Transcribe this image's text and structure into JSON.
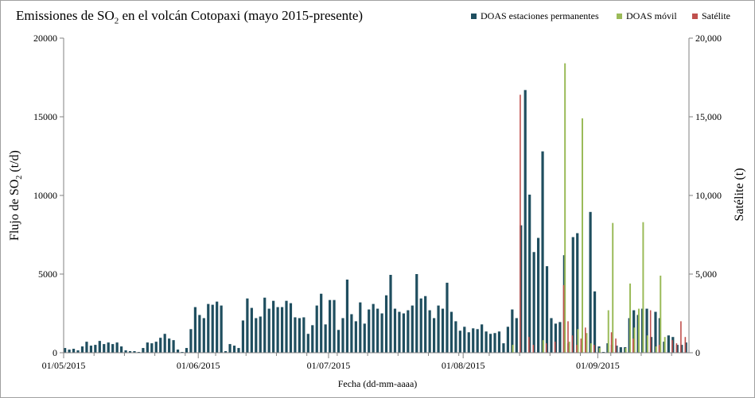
{
  "chart_data": {
    "type": "bar",
    "title": {
      "pre": "Emissiones de SO",
      "sub": "2",
      "post": " en el volcán Cotopaxi (mayo 2015-presente)"
    },
    "xlabel": "Fecha (dd-mm-aaaa)",
    "ylabel": {
      "pre": "Flujo de SO",
      "sub": "2",
      "post": " (t/d)"
    },
    "y2label": "Satélite (t)",
    "ylim": [
      0,
      20000
    ],
    "y2lim": [
      0,
      20000
    ],
    "yticks": [
      "0",
      "5000",
      "10000",
      "15000",
      "20000"
    ],
    "y2ticks": [
      "0",
      "5,000",
      "10,000",
      "15,000",
      "20,000"
    ],
    "xticks": [
      "01/05/2015",
      "01/06/2015",
      "01/07/2015",
      "01/08/2015",
      "01/09/2015"
    ],
    "x_start": "01/05/2015",
    "grid": false,
    "legend_position": "top-right",
    "series": [
      {
        "name": "DOAS estaciones permanentes",
        "color": "#1f4e5f",
        "axis": "left",
        "values": [
          {
            "date": "01/05/2015",
            "value": 300
          },
          {
            "date": "02/05/2015",
            "value": 200
          },
          {
            "date": "03/05/2015",
            "value": 250
          },
          {
            "date": "04/05/2015",
            "value": 150
          },
          {
            "date": "05/05/2015",
            "value": 400
          },
          {
            "date": "06/05/2015",
            "value": 700
          },
          {
            "date": "07/05/2015",
            "value": 450
          },
          {
            "date": "08/05/2015",
            "value": 500
          },
          {
            "date": "09/05/2015",
            "value": 750
          },
          {
            "date": "10/05/2015",
            "value": 550
          },
          {
            "date": "11/05/2015",
            "value": 650
          },
          {
            "date": "12/05/2015",
            "value": 550
          },
          {
            "date": "13/05/2015",
            "value": 650
          },
          {
            "date": "14/05/2015",
            "value": 400
          },
          {
            "date": "15/05/2015",
            "value": 150
          },
          {
            "date": "16/05/2015",
            "value": 100
          },
          {
            "date": "17/05/2015",
            "value": 100
          },
          {
            "date": "18/05/2015",
            "value": 50
          },
          {
            "date": "19/05/2015",
            "value": 300
          },
          {
            "date": "20/05/2015",
            "value": 650
          },
          {
            "date": "21/05/2015",
            "value": 600
          },
          {
            "date": "22/05/2015",
            "value": 700
          },
          {
            "date": "23/05/2015",
            "value": 950
          },
          {
            "date": "24/05/2015",
            "value": 1200
          },
          {
            "date": "25/05/2015",
            "value": 900
          },
          {
            "date": "26/05/2015",
            "value": 800
          },
          {
            "date": "27/05/2015",
            "value": 200
          },
          {
            "date": "28/05/2015",
            "value": 50
          },
          {
            "date": "29/05/2015",
            "value": 300
          },
          {
            "date": "30/05/2015",
            "value": 1500
          },
          {
            "date": "31/05/2015",
            "value": 2900
          },
          {
            "date": "01/06/2015",
            "value": 2400
          },
          {
            "date": "02/06/2015",
            "value": 2200
          },
          {
            "date": "03/06/2015",
            "value": 3100
          },
          {
            "date": "04/06/2015",
            "value": 3050
          },
          {
            "date": "05/06/2015",
            "value": 3250
          },
          {
            "date": "06/06/2015",
            "value": 3000
          },
          {
            "date": "07/06/2015",
            "value": 100
          },
          {
            "date": "08/06/2015",
            "value": 550
          },
          {
            "date": "09/06/2015",
            "value": 450
          },
          {
            "date": "10/06/2015",
            "value": 300
          },
          {
            "date": "11/06/2015",
            "value": 2050
          },
          {
            "date": "12/06/2015",
            "value": 3450
          },
          {
            "date": "13/06/2015",
            "value": 2850
          },
          {
            "date": "14/06/2015",
            "value": 2200
          },
          {
            "date": "15/06/2015",
            "value": 2300
          },
          {
            "date": "16/06/2015",
            "value": 3500
          },
          {
            "date": "17/06/2015",
            "value": 2800
          },
          {
            "date": "18/06/2015",
            "value": 3300
          },
          {
            "date": "19/06/2015",
            "value": 2900
          },
          {
            "date": "20/06/2015",
            "value": 2900
          },
          {
            "date": "21/06/2015",
            "value": 3300
          },
          {
            "date": "22/06/2015",
            "value": 3150
          },
          {
            "date": "23/06/2015",
            "value": 2250
          },
          {
            "date": "24/06/2015",
            "value": 2200
          },
          {
            "date": "25/06/2015",
            "value": 2250
          },
          {
            "date": "26/06/2015",
            "value": 1200
          },
          {
            "date": "27/06/2015",
            "value": 1750
          },
          {
            "date": "28/06/2015",
            "value": 3000
          },
          {
            "date": "29/06/2015",
            "value": 3750
          },
          {
            "date": "30/06/2015",
            "value": 1800
          },
          {
            "date": "01/07/2015",
            "value": 3350
          },
          {
            "date": "02/07/2015",
            "value": 3350
          },
          {
            "date": "03/07/2015",
            "value": 1450
          },
          {
            "date": "04/07/2015",
            "value": 2200
          },
          {
            "date": "05/07/2015",
            "value": 4650
          },
          {
            "date": "06/07/2015",
            "value": 2450
          },
          {
            "date": "07/07/2015",
            "value": 2000
          },
          {
            "date": "08/07/2015",
            "value": 3200
          },
          {
            "date": "09/07/2015",
            "value": 1850
          },
          {
            "date": "10/07/2015",
            "value": 2750
          },
          {
            "date": "11/07/2015",
            "value": 3100
          },
          {
            "date": "12/07/2015",
            "value": 2800
          },
          {
            "date": "13/07/2015",
            "value": 2500
          },
          {
            "date": "14/07/2015",
            "value": 3650
          },
          {
            "date": "15/07/2015",
            "value": 4950
          },
          {
            "date": "16/07/2015",
            "value": 2800
          },
          {
            "date": "17/07/2015",
            "value": 2600
          },
          {
            "date": "18/07/2015",
            "value": 2500
          },
          {
            "date": "19/07/2015",
            "value": 2700
          },
          {
            "date": "20/07/2015",
            "value": 3000
          },
          {
            "date": "21/07/2015",
            "value": 5000
          },
          {
            "date": "22/07/2015",
            "value": 3450
          },
          {
            "date": "23/07/2015",
            "value": 3600
          },
          {
            "date": "24/07/2015",
            "value": 2700
          },
          {
            "date": "25/07/2015",
            "value": 2200
          },
          {
            "date": "26/07/2015",
            "value": 3000
          },
          {
            "date": "27/07/2015",
            "value": 2800
          },
          {
            "date": "28/07/2015",
            "value": 4450
          },
          {
            "date": "29/07/2015",
            "value": 2600
          },
          {
            "date": "30/07/2015",
            "value": 2000
          },
          {
            "date": "31/07/2015",
            "value": 1400
          },
          {
            "date": "01/08/2015",
            "value": 1650
          },
          {
            "date": "02/08/2015",
            "value": 1300
          },
          {
            "date": "03/08/2015",
            "value": 1550
          },
          {
            "date": "04/08/2015",
            "value": 1500
          },
          {
            "date": "05/08/2015",
            "value": 1800
          },
          {
            "date": "06/08/2015",
            "value": 1350
          },
          {
            "date": "07/08/2015",
            "value": 1200
          },
          {
            "date": "08/08/2015",
            "value": 1250
          },
          {
            "date": "09/08/2015",
            "value": 1350
          },
          {
            "date": "10/08/2015",
            "value": 600
          },
          {
            "date": "11/08/2015",
            "value": 1650
          },
          {
            "date": "12/08/2015",
            "value": 2750
          },
          {
            "date": "13/08/2015",
            "value": 2200
          },
          {
            "date": "14/08/2015",
            "value": 8100
          },
          {
            "date": "15/08/2015",
            "value": 16700
          },
          {
            "date": "16/08/2015",
            "value": 10050
          },
          {
            "date": "17/08/2015",
            "value": 6400
          },
          {
            "date": "18/08/2015",
            "value": 7300
          },
          {
            "date": "19/08/2015",
            "value": 12800
          },
          {
            "date": "20/08/2015",
            "value": 5500
          },
          {
            "date": "21/08/2015",
            "value": 2200
          },
          {
            "date": "22/08/2015",
            "value": 1850
          },
          {
            "date": "23/08/2015",
            "value": 1950
          },
          {
            "date": "24/08/2015",
            "value": 6200
          },
          {
            "date": "25/08/2015",
            "value": 600
          },
          {
            "date": "26/08/2015",
            "value": 7350
          },
          {
            "date": "27/08/2015",
            "value": 7600
          },
          {
            "date": "28/08/2015",
            "value": 500
          },
          {
            "date": "29/08/2015",
            "value": 750
          },
          {
            "date": "30/08/2015",
            "value": 8950
          },
          {
            "date": "31/08/2015",
            "value": 3900
          },
          {
            "date": "01/09/2015",
            "value": 400
          },
          {
            "date": "02/09/2015",
            "value": 50
          },
          {
            "date": "03/09/2015",
            "value": 600
          },
          {
            "date": "04/09/2015",
            "value": 500
          },
          {
            "date": "05/09/2015",
            "value": 450
          },
          {
            "date": "06/09/2015",
            "value": 350
          },
          {
            "date": "07/09/2015",
            "value": 350
          },
          {
            "date": "08/09/2015",
            "value": 2200
          },
          {
            "date": "09/09/2015",
            "value": 2700
          },
          {
            "date": "10/09/2015",
            "value": 2400
          },
          {
            "date": "11/09/2015",
            "value": 2800
          },
          {
            "date": "12/09/2015",
            "value": 2800
          },
          {
            "date": "13/09/2015",
            "value": 1000
          },
          {
            "date": "14/09/2015",
            "value": 2600
          },
          {
            "date": "15/09/2015",
            "value": 2200
          },
          {
            "date": "16/09/2015",
            "value": 700
          },
          {
            "date": "17/09/2015",
            "value": 1100
          },
          {
            "date": "18/09/2015",
            "value": 1000
          },
          {
            "date": "19/09/2015",
            "value": 500
          },
          {
            "date": "20/09/2015",
            "value": 500
          },
          {
            "date": "21/09/2015",
            "value": 650
          }
        ]
      },
      {
        "name": "DOAS móvil",
        "color": "#9bbb59",
        "axis": "left",
        "values": [
          {
            "date": "12/08/2015",
            "value": 500
          },
          {
            "date": "19/08/2015",
            "value": 800
          },
          {
            "date": "24/08/2015",
            "value": 18400
          },
          {
            "date": "25/08/2015",
            "value": 700
          },
          {
            "date": "27/08/2015",
            "value": 1500
          },
          {
            "date": "28/08/2015",
            "value": 14900
          },
          {
            "date": "29/08/2015",
            "value": 1250
          },
          {
            "date": "30/08/2015",
            "value": 600
          },
          {
            "date": "01/09/2015",
            "value": 300
          },
          {
            "date": "03/09/2015",
            "value": 2700
          },
          {
            "date": "04/09/2015",
            "value": 8250
          },
          {
            "date": "07/09/2015",
            "value": 300
          },
          {
            "date": "08/09/2015",
            "value": 4400
          },
          {
            "date": "09/09/2015",
            "value": 1600
          },
          {
            "date": "10/09/2015",
            "value": 2800
          },
          {
            "date": "11/09/2015",
            "value": 8300
          },
          {
            "date": "12/09/2015",
            "value": 1100
          },
          {
            "date": "14/09/2015",
            "value": 400
          },
          {
            "date": "15/09/2015",
            "value": 4900
          },
          {
            "date": "16/09/2015",
            "value": 1000
          }
        ]
      },
      {
        "name": "Satélite",
        "color": "#c0504d",
        "axis": "right",
        "values": [
          {
            "date": "14/08/2015",
            "value": 16400
          },
          {
            "date": "16/08/2015",
            "value": 1000
          },
          {
            "date": "17/08/2015",
            "value": 500
          },
          {
            "date": "20/08/2015",
            "value": 600
          },
          {
            "date": "22/08/2015",
            "value": 700
          },
          {
            "date": "24/08/2015",
            "value": 4300
          },
          {
            "date": "25/08/2015",
            "value": 2000
          },
          {
            "date": "26/08/2015",
            "value": 1100
          },
          {
            "date": "27/08/2015",
            "value": 500
          },
          {
            "date": "28/08/2015",
            "value": 900
          },
          {
            "date": "29/08/2015",
            "value": 1600
          },
          {
            "date": "31/08/2015",
            "value": 500
          },
          {
            "date": "04/09/2015",
            "value": 1300
          },
          {
            "date": "05/09/2015",
            "value": 900
          },
          {
            "date": "09/09/2015",
            "value": 900
          },
          {
            "date": "13/09/2015",
            "value": 2700
          },
          {
            "date": "15/09/2015",
            "value": 500
          },
          {
            "date": "18/09/2015",
            "value": 800
          },
          {
            "date": "19/09/2015",
            "value": 600
          },
          {
            "date": "20/09/2015",
            "value": 2000
          },
          {
            "date": "21/09/2015",
            "value": 1000
          }
        ]
      }
    ]
  }
}
